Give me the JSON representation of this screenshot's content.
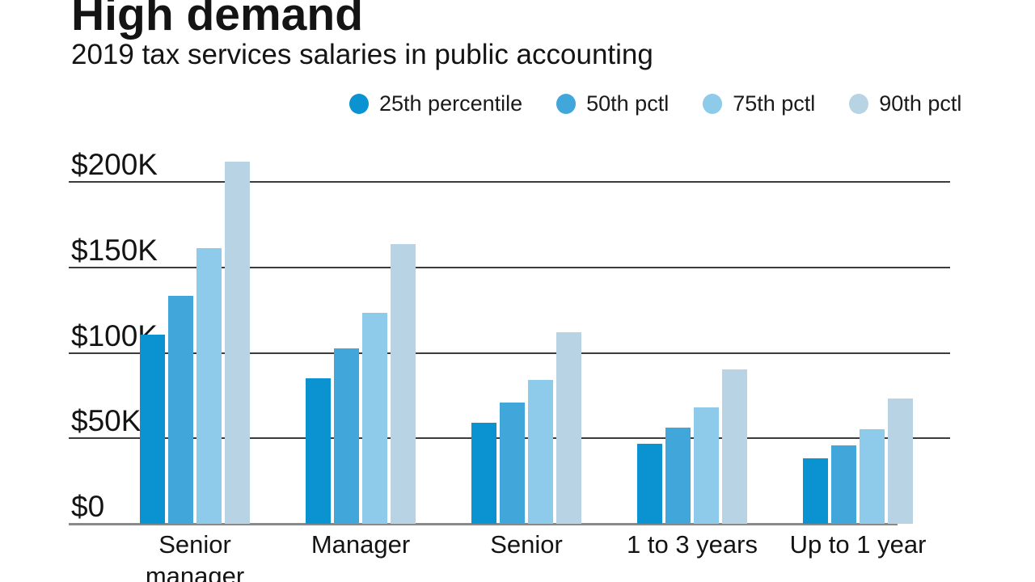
{
  "header": {
    "title": "High demand",
    "subtitle": "2019 tax services salaries in public accounting"
  },
  "chart_data": {
    "type": "bar",
    "title": "High demand",
    "subtitle": "2019 tax services salaries in public accounting",
    "unit": "USD thousands",
    "categories": [
      "Senior manager",
      "Manager",
      "Senior",
      "1 to 3 years",
      "Up to 1 year"
    ],
    "series": [
      {
        "name": "25th percentile",
        "color": "#0a93d0",
        "values": [
          110.5,
          85,
          59,
          47,
          38.5
        ]
      },
      {
        "name": "50th pctl",
        "color": "#41a7db",
        "values": [
          133.5,
          102.5,
          71,
          56.5,
          46
        ]
      },
      {
        "name": "75th pctl",
        "color": "#8ecaea",
        "values": [
          161,
          123.5,
          84,
          68,
          55.5
        ]
      },
      {
        "name": "90th pctl",
        "color": "#b8d3e3",
        "values": [
          212,
          163.5,
          112,
          90.5,
          73.5
        ]
      }
    ],
    "yticks": [
      "$0",
      "$50K",
      "$100K",
      "$150K",
      "$200K"
    ],
    "ytick_values": [
      0,
      50,
      100,
      150,
      200
    ],
    "ylim": [
      0,
      212
    ],
    "grid": true,
    "legend_position": "top",
    "colors": {
      "text": "#141414",
      "gridline": "#3c3c3c",
      "axis_baseline": "#87898c",
      "background": "#ffffff"
    }
  }
}
